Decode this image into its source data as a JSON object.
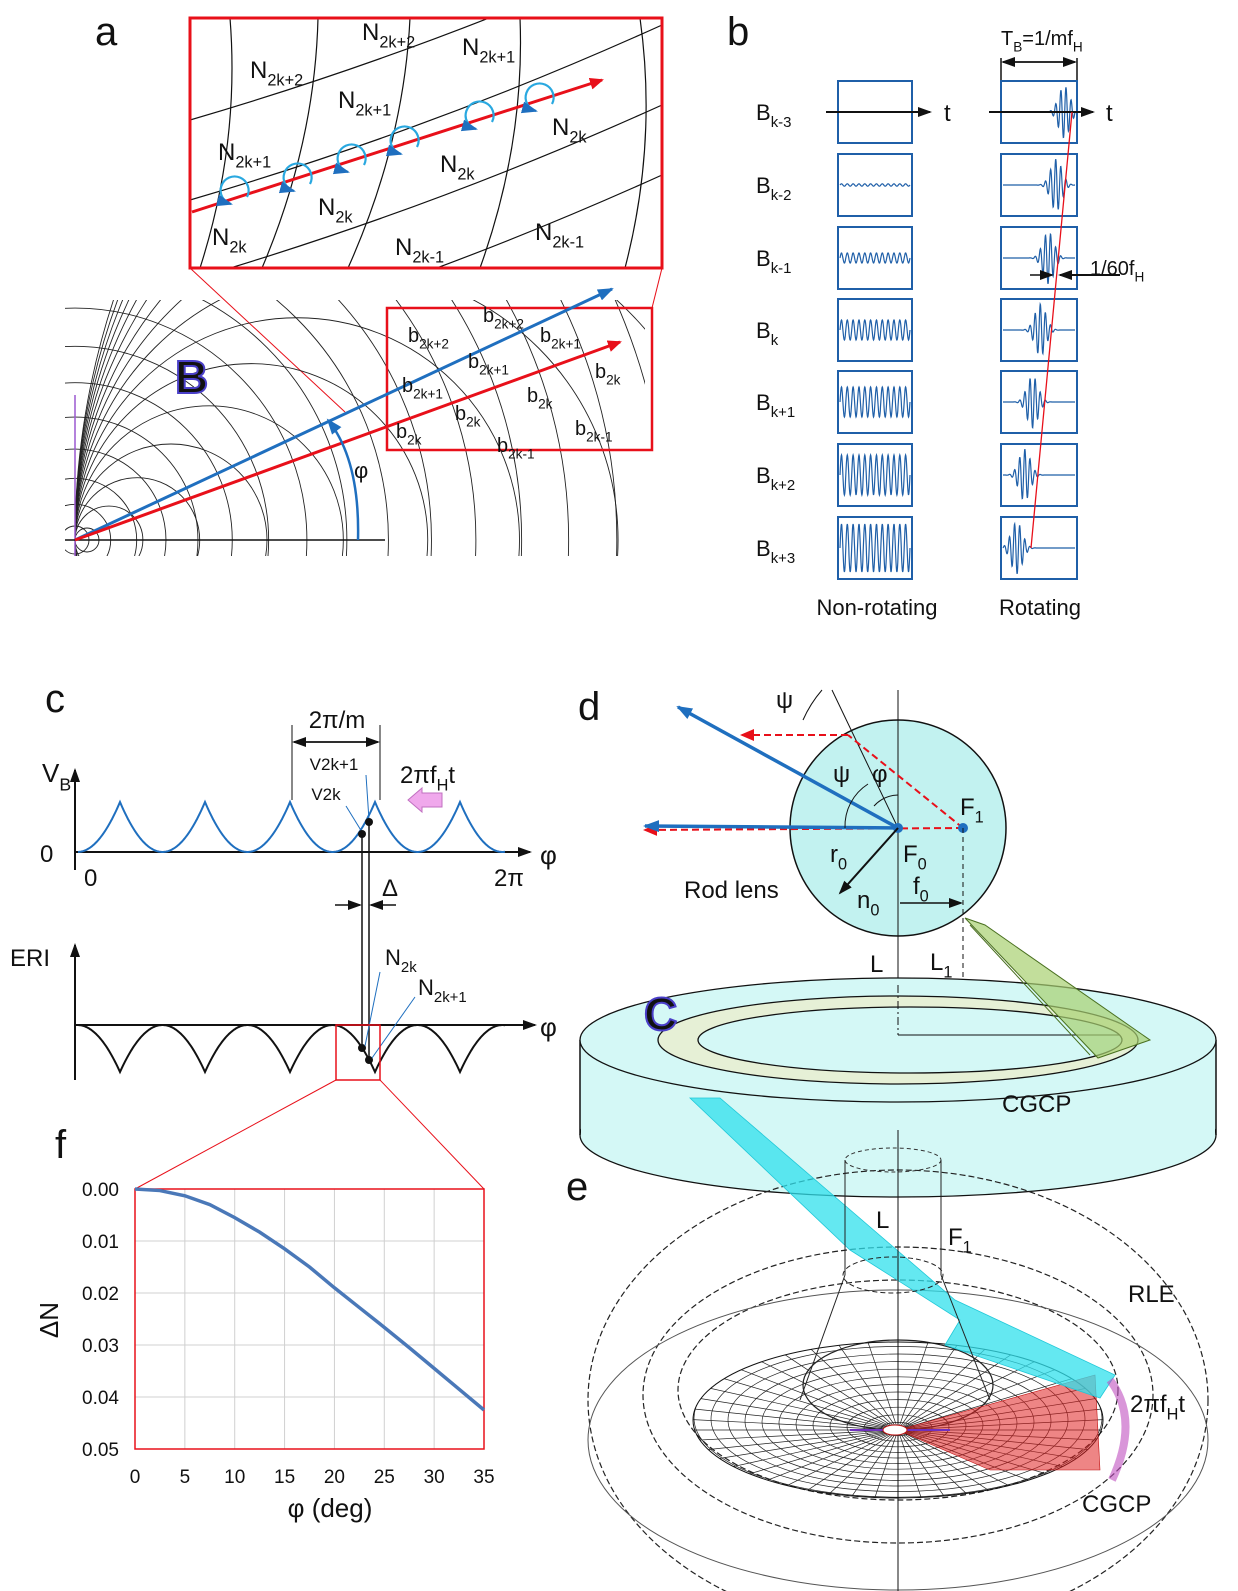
{
  "panels": {
    "a": {
      "label": "a",
      "zoom_labels": [
        [
          "N",
          "2k+2"
        ],
        [
          "N",
          "2k+2"
        ],
        [
          "N",
          "2k+1"
        ],
        [
          "N",
          "2k+1"
        ],
        [
          "N",
          "2k+1"
        ],
        [
          "N",
          "2k"
        ],
        [
          "N",
          "2k"
        ],
        [
          "N",
          "2k"
        ],
        [
          "N",
          "2k"
        ],
        [
          "N",
          "2k-1"
        ],
        [
          "N",
          "2k-1"
        ]
      ],
      "region_symbol": "B",
      "grid_labels": [
        [
          "b",
          "2k+2"
        ],
        [
          "b",
          "2k+2"
        ],
        [
          "b",
          "2k+1"
        ],
        [
          "b",
          "2k+1"
        ],
        [
          "b",
          "2k+1"
        ],
        [
          "b",
          "2k"
        ],
        [
          "b",
          "2k"
        ],
        [
          "b",
          "2k"
        ],
        [
          "b",
          "2k"
        ],
        [
          "b",
          "2k-1"
        ],
        [
          "b",
          "2k-1"
        ]
      ],
      "angle": "φ"
    },
    "b": {
      "label": "b",
      "rows": [
        [
          "B",
          "k-3"
        ],
        [
          "B",
          "k-2"
        ],
        [
          "B",
          "k-1"
        ],
        [
          "B",
          "k"
        ],
        [
          "B",
          "k+1"
        ],
        [
          "B",
          "k+2"
        ],
        [
          "B",
          "k+3"
        ]
      ],
      "time_axis": [
        "t",
        "t"
      ],
      "period": [
        "T",
        "B",
        "=1/mf",
        "H"
      ],
      "delay": [
        "1/60f",
        "H"
      ],
      "columns": [
        "Non-rotating",
        "Rotating"
      ]
    },
    "c": {
      "label": "c",
      "y_axis": [
        "V",
        "B"
      ],
      "zero": "0",
      "x_start": "0",
      "x_end": "2π",
      "x_axis": "φ",
      "spacing": "2π/m",
      "v_upper": "V2k+1",
      "v_lower": "V2k",
      "rotation": [
        "2πf",
        "H",
        "t"
      ],
      "delta": "Δ",
      "eri_axis": "ERI",
      "n_upper": [
        "N",
        "2k"
      ],
      "n_lower": [
        "N",
        "2k+1"
      ],
      "eri_x_axis": "φ"
    },
    "d": {
      "label": "d",
      "psi_outer": "ψ",
      "psi_inner": "ψ",
      "angle": "φ",
      "focus_1": [
        "F",
        "1"
      ],
      "focus_0": [
        "F",
        "0"
      ],
      "radius": [
        "r",
        "0"
      ],
      "index": [
        "n",
        "0"
      ],
      "focal": [
        "f",
        "0"
      ],
      "lens": "Rod lens",
      "axis_l": "L",
      "axis_l1": [
        "L",
        "1"
      ],
      "cylinder_symbol": "C",
      "cylinder": "CGCP"
    },
    "e": {
      "label": "e",
      "axis_l": "L",
      "focus": [
        "F",
        "1"
      ],
      "rle": "RLE",
      "rotation": [
        "2πf",
        "H",
        "t"
      ],
      "cgcp": "CGCP"
    },
    "f": {
      "label": "f"
    }
  },
  "chart_data": {
    "type": "line",
    "y_label": "ΔN",
    "x_label": "φ  (deg)",
    "x": [
      0,
      2.5,
      5,
      7.5,
      10,
      12.5,
      15,
      17.5,
      20,
      22.5,
      25,
      27.5,
      30,
      32.5,
      35
    ],
    "values": [
      0,
      0.0003,
      0.0013,
      0.003,
      0.0055,
      0.0083,
      0.0115,
      0.015,
      0.019,
      0.0228,
      0.0266,
      0.0305,
      0.0345,
      0.0385,
      0.0425
    ],
    "color": "#4a78b8",
    "xlim": [
      0,
      35
    ],
    "xticks": [
      0,
      5,
      10,
      15,
      20,
      25,
      30,
      35
    ],
    "ylim": [
      0,
      0.05
    ],
    "y_inverted": true,
    "yticks": [
      {
        "value": 0,
        "label": "0.00"
      },
      {
        "value": 0.01,
        "label": "0.01"
      },
      {
        "value": 0.02,
        "label": "0.02"
      },
      {
        "value": 0.03,
        "label": "0.03"
      },
      {
        "value": 0.04,
        "label": "0.04"
      },
      {
        "value": 0.05,
        "label": "0.05"
      }
    ],
    "grid": true
  }
}
